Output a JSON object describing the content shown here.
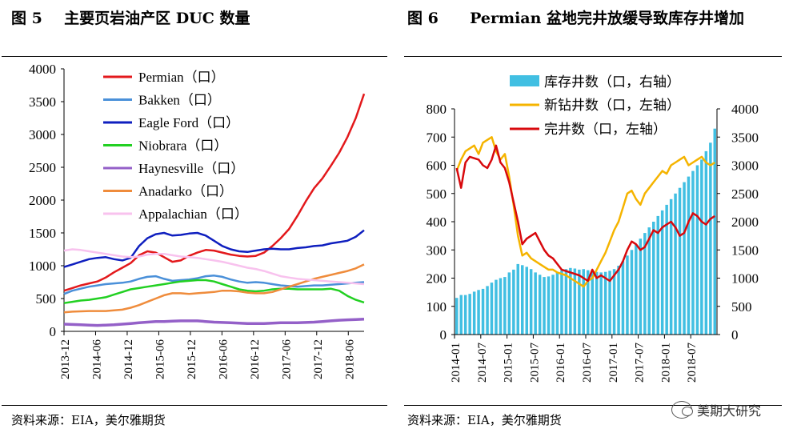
{
  "left": {
    "fig_label": "图 5",
    "fig_title": "主要页岩油产区 DUC 数量",
    "source": "资料来源：EIA，美尔雅期货"
  },
  "right": {
    "fig_label": "图 6",
    "fig_title": "Permian 盆地完井放缓导致库存井增加",
    "source": "资料来源：EIA，美尔雅期货"
  },
  "watermark": "美期大研究",
  "chart_data": [
    {
      "type": "line",
      "ylim": [
        0,
        4000
      ],
      "yticks": [
        0,
        500,
        1000,
        1500,
        2000,
        2500,
        3000,
        3500,
        4000
      ],
      "xticks": [
        "2013-12",
        "2014-06",
        "2014-12",
        "2015-06",
        "2015-12",
        "2016-06",
        "2016-12",
        "2017-06",
        "2017-12",
        "2018-06"
      ],
      "legend_position": "top-left",
      "series": [
        {
          "name": "Permian（口）",
          "color": "#e3191c",
          "values": [
            620,
            660,
            700,
            730,
            760,
            820,
            900,
            970,
            1040,
            1160,
            1220,
            1200,
            1130,
            1060,
            1080,
            1150,
            1200,
            1240,
            1230,
            1200,
            1170,
            1150,
            1140,
            1150,
            1200,
            1300,
            1420,
            1560,
            1760,
            1980,
            2180,
            2330,
            2520,
            2720,
            2960,
            3250,
            3620
          ]
        },
        {
          "name": "Bakken（口）",
          "color": "#4a90d9",
          "values": [
            570,
            620,
            650,
            680,
            700,
            720,
            730,
            740,
            760,
            800,
            830,
            840,
            800,
            770,
            780,
            790,
            810,
            840,
            850,
            830,
            790,
            760,
            740,
            750,
            740,
            720,
            700,
            690,
            680,
            690,
            700,
            700,
            710,
            720,
            730,
            740,
            750
          ]
        },
        {
          "name": "Eagle Ford（口）",
          "color": "#0f1fbf",
          "values": [
            980,
            1020,
            1060,
            1100,
            1120,
            1130,
            1100,
            1080,
            1120,
            1300,
            1420,
            1480,
            1500,
            1460,
            1470,
            1490,
            1500,
            1460,
            1380,
            1300,
            1250,
            1220,
            1210,
            1230,
            1250,
            1260,
            1250,
            1250,
            1270,
            1280,
            1300,
            1310,
            1340,
            1360,
            1380,
            1440,
            1540
          ]
        },
        {
          "name": "Niobrara（口）",
          "color": "#22d022",
          "values": [
            430,
            450,
            470,
            480,
            500,
            520,
            560,
            600,
            640,
            660,
            680,
            700,
            720,
            740,
            760,
            770,
            780,
            780,
            760,
            720,
            680,
            640,
            620,
            610,
            620,
            640,
            650,
            650,
            640,
            640,
            640,
            640,
            650,
            620,
            540,
            480,
            440
          ]
        },
        {
          "name": "Haynesville（口）",
          "color": "#9460c8",
          "values": [
            110,
            105,
            100,
            95,
            90,
            95,
            100,
            110,
            120,
            130,
            140,
            150,
            150,
            155,
            160,
            160,
            160,
            150,
            140,
            135,
            130,
            125,
            120,
            120,
            120,
            125,
            130,
            130,
            130,
            135,
            140,
            150,
            160,
            170,
            175,
            180,
            185
          ]
        },
        {
          "name": "Anadarko（口）",
          "color": "#ef8c3c",
          "values": [
            290,
            300,
            305,
            310,
            310,
            310,
            320,
            330,
            360,
            400,
            450,
            500,
            550,
            580,
            580,
            570,
            580,
            590,
            600,
            620,
            620,
            610,
            590,
            580,
            580,
            600,
            640,
            680,
            720,
            760,
            800,
            830,
            860,
            890,
            920,
            960,
            1020
          ]
        },
        {
          "name": "Appalachian（口）",
          "color": "#f8c2ee",
          "values": [
            1230,
            1250,
            1240,
            1220,
            1200,
            1180,
            1160,
            1140,
            1130,
            1140,
            1170,
            1180,
            1180,
            1160,
            1140,
            1130,
            1120,
            1100,
            1080,
            1060,
            1030,
            1000,
            970,
            950,
            920,
            880,
            840,
            820,
            800,
            790,
            780,
            770,
            760,
            750,
            740,
            730,
            720
          ]
        }
      ]
    },
    {
      "type": "bar+line",
      "xticks": [
        "2014-01",
        "2014-07",
        "2015-01",
        "2015-07",
        "2016-01",
        "2016-07",
        "2017-01",
        "2017-07",
        "2018-01",
        "2018-07"
      ],
      "left_axis": {
        "ylim": [
          0,
          800
        ],
        "ticks": [
          0,
          100,
          200,
          300,
          400,
          500,
          600,
          700,
          800
        ]
      },
      "right_axis": {
        "ylim": [
          0,
          4000
        ],
        "ticks": [
          0,
          500,
          1000,
          1500,
          2000,
          2500,
          3000,
          3500,
          4000
        ]
      },
      "legend_position": "top-left",
      "bars": {
        "name": "库存井数（口，右轴）",
        "color": "#41bfe2",
        "axis": "right",
        "values": [
          650,
          700,
          700,
          720,
          760,
          790,
          810,
          860,
          920,
          970,
          1000,
          1020,
          1100,
          1150,
          1250,
          1230,
          1200,
          1160,
          1100,
          1060,
          1020,
          1030,
          1060,
          1100,
          1140,
          1160,
          1180,
          1170,
          1150,
          1160,
          1140,
          1120,
          1110,
          1100,
          1110,
          1130,
          1160,
          1220,
          1300,
          1400,
          1500,
          1600,
          1700,
          1800,
          1900,
          2000,
          2100,
          2200,
          2300,
          2400,
          2500,
          2600,
          2700,
          2800,
          2900,
          3000,
          3100,
          3250,
          3400,
          3650
        ]
      },
      "lines": [
        {
          "name": "新钻井数（口，左轴）",
          "color": "#f5b400",
          "axis": "left",
          "values": [
            580,
            620,
            650,
            660,
            670,
            640,
            680,
            690,
            700,
            650,
            620,
            640,
            560,
            460,
            350,
            280,
            290,
            270,
            260,
            250,
            240,
            230,
            230,
            220,
            215,
            210,
            200,
            190,
            180,
            170,
            190,
            200,
            230,
            260,
            290,
            330,
            370,
            400,
            450,
            500,
            510,
            480,
            460,
            500,
            520,
            540,
            560,
            580,
            570,
            600,
            610,
            620,
            630,
            600,
            610,
            620,
            630,
            610,
            600,
            610
          ]
        },
        {
          "name": "完井数（口，左轴）",
          "color": "#d8090d",
          "axis": "left",
          "values": [
            590,
            520,
            610,
            630,
            625,
            620,
            600,
            590,
            620,
            670,
            610,
            590,
            540,
            470,
            400,
            320,
            340,
            350,
            360,
            330,
            300,
            280,
            270,
            250,
            230,
            225,
            220,
            215,
            210,
            200,
            190,
            230,
            200,
            210,
            200,
            190,
            210,
            230,
            260,
            300,
            330,
            320,
            300,
            310,
            340,
            370,
            360,
            380,
            390,
            400,
            380,
            350,
            360,
            400,
            430,
            420,
            400,
            390,
            410,
            420
          ]
        }
      ]
    }
  ]
}
